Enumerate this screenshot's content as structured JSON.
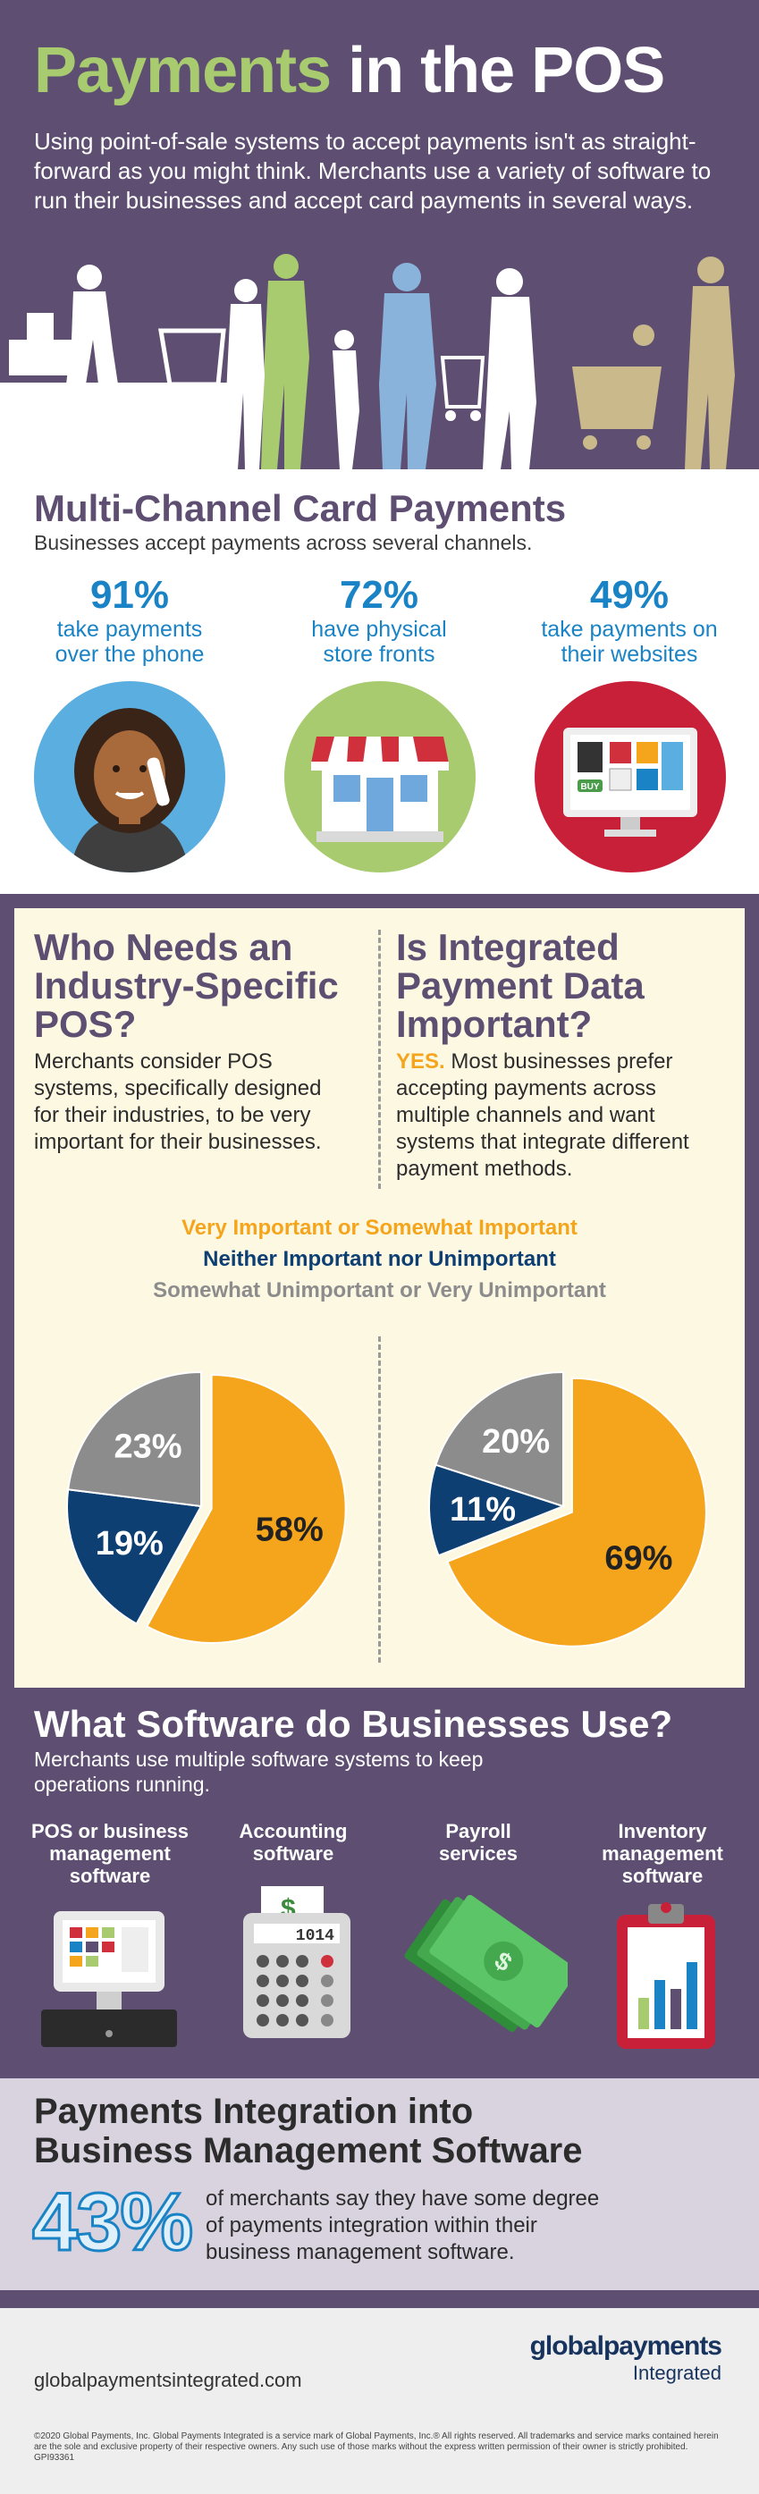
{
  "hero": {
    "title_part1": "Payments",
    "title_part2": " in the POS",
    "intro": "Using point-of-sale systems to accept payments isn't as straight-forward as you might think. Merchants use a variety of software to run their businesses and accept card payments in several ways."
  },
  "channels": {
    "title": "Multi-Channel Card Payments",
    "subtitle": "Businesses accept payments across several channels.",
    "stats": [
      {
        "pct": "91%",
        "line1": "take payments",
        "line2": "over the phone"
      },
      {
        "pct": "72%",
        "line1": "have physical",
        "line2": "store fronts"
      },
      {
        "pct": "49%",
        "line1": "take payments on",
        "line2": "their websites"
      }
    ],
    "buy_label": "BUY"
  },
  "who_needs": {
    "title_l1": "Who Needs an",
    "title_l2": "Industry-Specific",
    "title_l3": "POS?",
    "body": "Merchants consider POS systems, specifically designed for their industries, to be very important for their businesses."
  },
  "integrated": {
    "title_l1": "Is Integrated",
    "title_l2": "Payment Data",
    "title_l3": "Important?",
    "yes": "YES.",
    "body": " Most businesses prefer accepting payments across multiple channels and want systems that integrate different payment methods."
  },
  "legend": {
    "important": "Very Important or Somewhat Important",
    "neither": "Neither Important nor Unimportant",
    "unimportant": "Somewhat Unimportant or Very Unimportant"
  },
  "colors": {
    "important": "#f5a51c",
    "neither": "#0d3f73",
    "unimportant": "#8c8c8c",
    "purple": "#5e4f72",
    "green": "#a7cb6e",
    "blue": "#1a83c5"
  },
  "chart_data": [
    {
      "type": "pie",
      "labels": [
        "Very Important or Somewhat Important",
        "Neither Important nor Unimportant",
        "Somewhat Unimportant or Very Unimportant"
      ],
      "values": [
        58,
        19,
        23
      ],
      "value_labels": [
        "58%",
        "19%",
        "23%"
      ]
    },
    {
      "type": "pie",
      "labels": [
        "Very Important or Somewhat Important",
        "Neither Important nor Unimportant",
        "Somewhat Unimportant or Very Unimportant"
      ],
      "values": [
        69,
        11,
        20
      ],
      "value_labels": [
        "69%",
        "11%",
        "20%"
      ]
    }
  ],
  "software": {
    "title": "What Software do Businesses Use?",
    "subtitle_l1": "Merchants use multiple software systems to keep",
    "subtitle_l2": "operations running.",
    "items": [
      {
        "l1": "POS or business",
        "l2": "management",
        "l3": "software"
      },
      {
        "l1": "Accounting",
        "l2": "software",
        "l3": ""
      },
      {
        "l1": "Payroll",
        "l2": "services",
        "l3": ""
      },
      {
        "l1": "Inventory",
        "l2": "management",
        "l3": "software"
      }
    ],
    "calculator_display": "1014"
  },
  "integration": {
    "title_l1": "Payments Integration into",
    "title_l2": "Business Management Software",
    "pct": "43%",
    "body_l1": "of merchants say they have some degree",
    "body_l2": "of payments integration within their",
    "body_l3": "business management software."
  },
  "footer": {
    "url": "globalpaymentsintegrated.com",
    "brand": "globalpayments",
    "brand_sub": "Integrated",
    "legal": "©2020 Global Payments, Inc. Global Payments Integrated is a service mark of Global Payments, Inc.® All rights reserved. All trademarks and service marks contained herein are the sole and exclusive property of their respective owners. Any such use of those marks without the express written permission of their owner is strictly prohibited. GPI93361"
  }
}
